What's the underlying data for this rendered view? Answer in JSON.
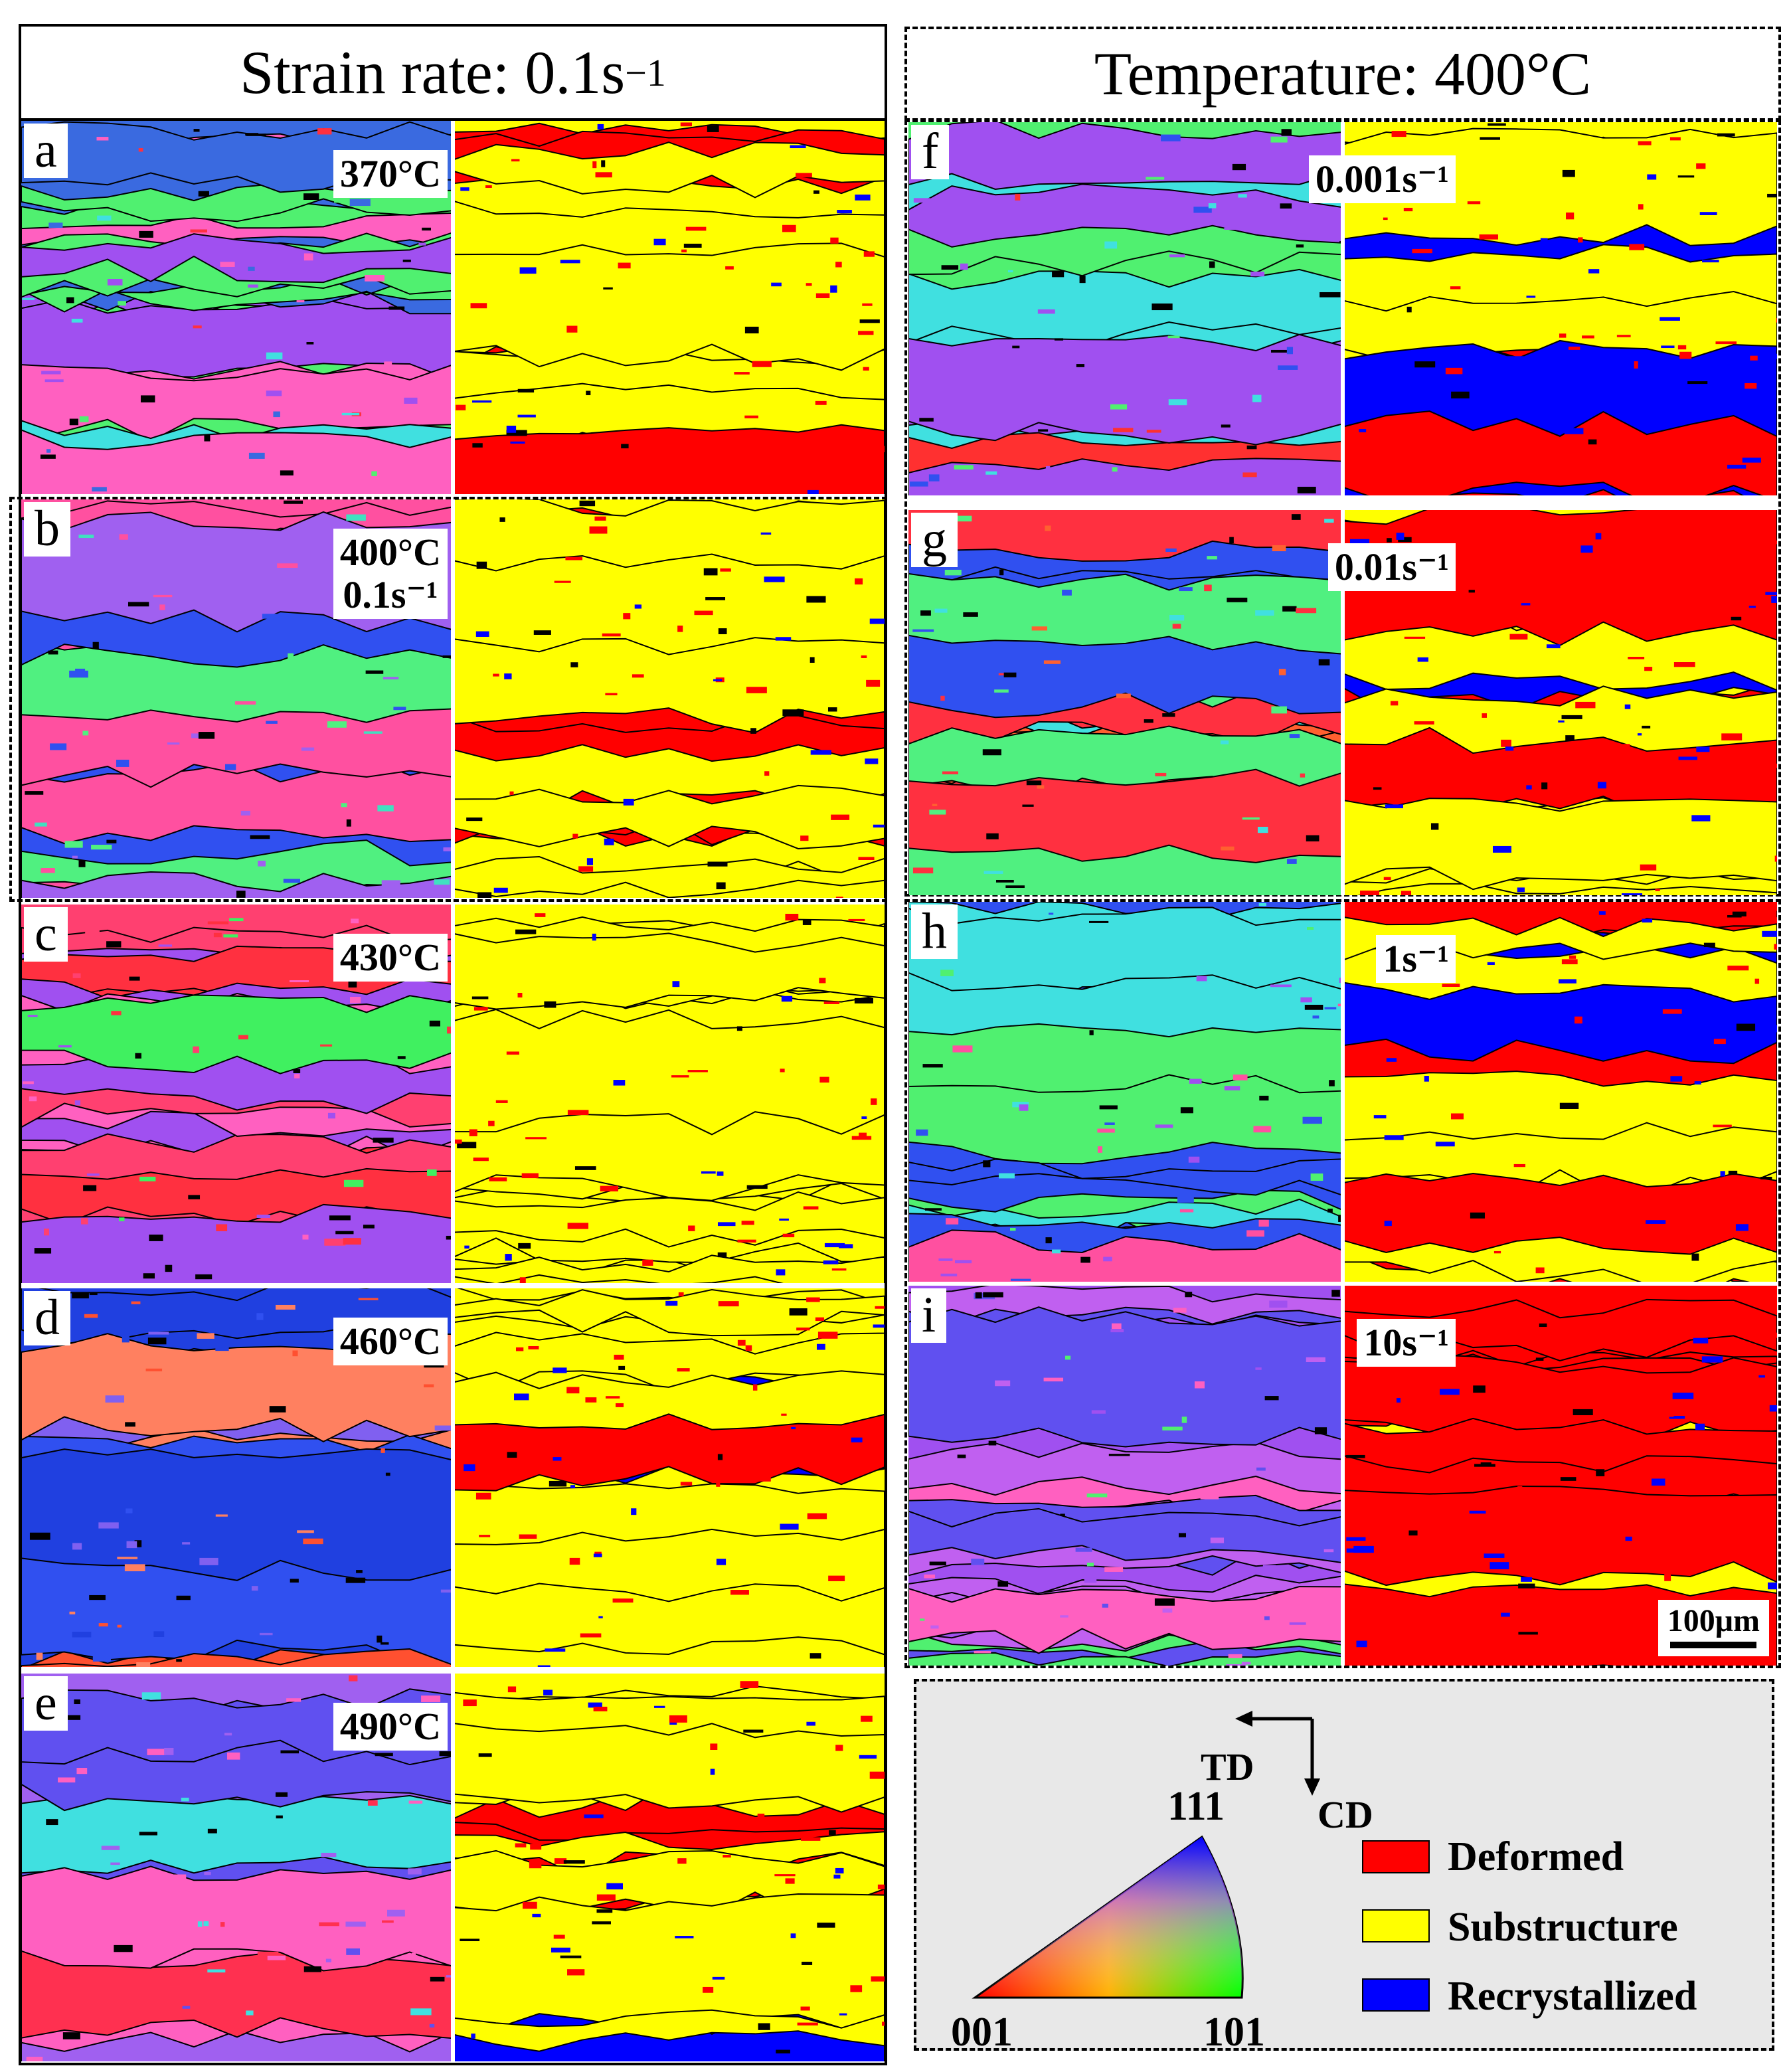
{
  "left_header": {
    "text": "Strain rate: 0.1s",
    "sup": "−1"
  },
  "right_header": {
    "text": "Temperature: 400°C"
  },
  "panels": [
    {
      "letter": "a",
      "cond1": "370°C",
      "cond2": ""
    },
    {
      "letter": "b",
      "cond1": "400°C",
      "cond2": "0.1s⁻¹"
    },
    {
      "letter": "c",
      "cond1": "430°C",
      "cond2": ""
    },
    {
      "letter": "d",
      "cond1": "460°C",
      "cond2": ""
    },
    {
      "letter": "e",
      "cond1": "490°C",
      "cond2": ""
    },
    {
      "letter": "f",
      "cond1": "0.001s⁻¹",
      "cond2": ""
    },
    {
      "letter": "g",
      "cond1": "0.01s⁻¹",
      "cond2": ""
    },
    {
      "letter": "h",
      "cond1": "1s⁻¹",
      "cond2": ""
    },
    {
      "letter": "i",
      "cond1": "10s⁻¹",
      "cond2": ""
    }
  ],
  "scale_bar": "100μm",
  "legend": {
    "ipf_labels": {
      "top": "111",
      "left": "001",
      "right": "101"
    },
    "axes": {
      "td": "TD",
      "cd": "CD"
    },
    "classes": [
      {
        "label": "Deformed",
        "color": "#ff0000"
      },
      {
        "label": "Substructure",
        "color": "#ffff00"
      },
      {
        "label": "Recrystallized",
        "color": "#0000ff"
      }
    ]
  },
  "colors": {
    "ipf_red": "#ff3030",
    "ipf_green": "#30f060",
    "ipf_blue": "#3050f0",
    "ipf_pink": "#ff60c0",
    "ipf_purple": "#9a50f0"
  }
}
